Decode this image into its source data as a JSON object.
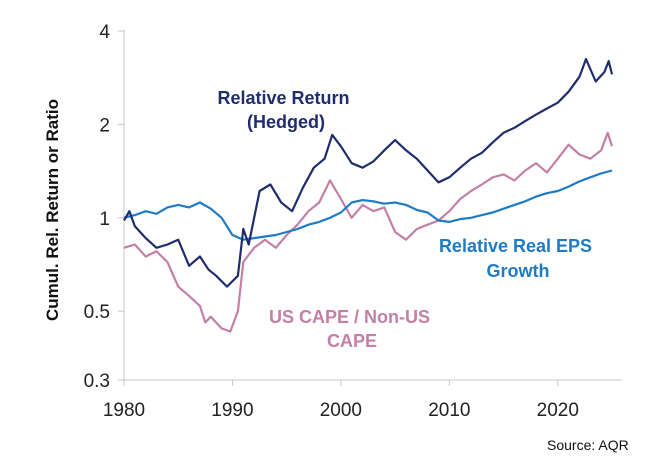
{
  "chart_data": {
    "type": "line",
    "ylabel": "Cumul. Rel. Return or Ratio",
    "y_scale": "log",
    "ylim": [
      0.3,
      4
    ],
    "xlim": [
      1980,
      2025
    ],
    "x_ticks": [
      1980,
      1990,
      2000,
      2010,
      2020
    ],
    "x_tick_labels": [
      "1980",
      "1990",
      "2000",
      "2010",
      "2020"
    ],
    "y_ticks": [
      0.3,
      0.5,
      1,
      2,
      4
    ],
    "y_tick_labels": [
      "0.3",
      "0.5",
      "1",
      "2",
      "4"
    ],
    "grid": false,
    "legend": "none",
    "series": [
      {
        "name": "Relative Return (Hedged)",
        "label_lines": [
          "Relative Return",
          "(Hedged)"
        ],
        "color": "#1f2d6e",
        "x": [
          1980,
          1980.5,
          1981,
          1982,
          1983,
          1984,
          1985,
          1986,
          1987,
          1987.8,
          1988.5,
          1989.5,
          1990.5,
          1991,
          1991.5,
          1992.5,
          1993.5,
          1994.5,
          1995.5,
          1996.5,
          1997.5,
          1998.5,
          1999.2,
          2000,
          2001,
          2002,
          2003,
          2004,
          2005,
          2006,
          2007,
          2008,
          2009,
          2010,
          2011,
          2012,
          2013,
          2014,
          2015,
          2016,
          2017,
          2018,
          2019,
          2020,
          2021,
          2022,
          2022.6,
          2023.5,
          2024.3,
          2024.7,
          2025
        ],
        "values": [
          0.98,
          1.05,
          0.94,
          0.86,
          0.8,
          0.82,
          0.85,
          0.7,
          0.75,
          0.68,
          0.65,
          0.6,
          0.65,
          0.92,
          0.82,
          1.22,
          1.28,
          1.12,
          1.05,
          1.25,
          1.45,
          1.55,
          1.85,
          1.7,
          1.5,
          1.45,
          1.52,
          1.65,
          1.78,
          1.65,
          1.55,
          1.42,
          1.3,
          1.35,
          1.45,
          1.55,
          1.62,
          1.75,
          1.88,
          1.95,
          2.05,
          2.15,
          2.25,
          2.35,
          2.55,
          2.85,
          3.25,
          2.75,
          2.95,
          3.2,
          2.9
        ]
      },
      {
        "name": "Relative Real EPS Growth",
        "label_lines": [
          "Relative Real EPS",
          "Growth"
        ],
        "color": "#1e7bc4",
        "x": [
          1980,
          1981,
          1982,
          1983,
          1984,
          1985,
          1986,
          1987,
          1988,
          1989,
          1990,
          1991,
          1992,
          1993,
          1994,
          1995,
          1996,
          1997,
          1998,
          1999,
          2000,
          2001,
          2002,
          2003,
          2004,
          2005,
          2006,
          2007,
          2008,
          2009,
          2010,
          2011,
          2012,
          2013,
          2014,
          2015,
          2016,
          2017,
          2018,
          2019,
          2020,
          2021,
          2022,
          2023,
          2024,
          2025
        ],
        "values": [
          1.0,
          1.02,
          1.05,
          1.03,
          1.08,
          1.1,
          1.08,
          1.12,
          1.07,
          1.0,
          0.88,
          0.85,
          0.86,
          0.87,
          0.88,
          0.9,
          0.92,
          0.95,
          0.97,
          1.0,
          1.04,
          1.12,
          1.14,
          1.13,
          1.11,
          1.12,
          1.1,
          1.06,
          1.04,
          0.98,
          0.97,
          0.99,
          1.0,
          1.02,
          1.04,
          1.07,
          1.1,
          1.13,
          1.17,
          1.2,
          1.22,
          1.26,
          1.31,
          1.35,
          1.39,
          1.42
        ]
      },
      {
        "name": "US CAPE / Non-US CAPE",
        "label_lines": [
          "US CAPE / Non-US",
          "CAPE"
        ],
        "color": "#c47fa7",
        "x": [
          1980,
          1981,
          1982,
          1983,
          1984,
          1985,
          1986,
          1987,
          1987.5,
          1988,
          1989,
          1989.8,
          1990.5,
          1991,
          1992,
          1993,
          1994,
          1995,
          1996,
          1997,
          1998,
          1999,
          2000,
          2001,
          2002,
          2003,
          2004,
          2005,
          2006,
          2007,
          2008,
          2009,
          2010,
          2011,
          2012,
          2013,
          2014,
          2015,
          2016,
          2017,
          2018,
          2019,
          2020,
          2021,
          2022,
          2023,
          2024,
          2024.6,
          2025
        ],
        "values": [
          0.8,
          0.82,
          0.75,
          0.78,
          0.72,
          0.6,
          0.56,
          0.52,
          0.46,
          0.48,
          0.44,
          0.43,
          0.5,
          0.72,
          0.8,
          0.85,
          0.8,
          0.88,
          0.95,
          1.05,
          1.12,
          1.32,
          1.15,
          1.0,
          1.1,
          1.05,
          1.08,
          0.9,
          0.85,
          0.92,
          0.95,
          0.98,
          1.05,
          1.15,
          1.22,
          1.28,
          1.35,
          1.38,
          1.32,
          1.42,
          1.5,
          1.4,
          1.55,
          1.72,
          1.6,
          1.55,
          1.65,
          1.88,
          1.7
        ]
      }
    ],
    "annotations": [
      {
        "text": "Source: AQR"
      }
    ]
  }
}
